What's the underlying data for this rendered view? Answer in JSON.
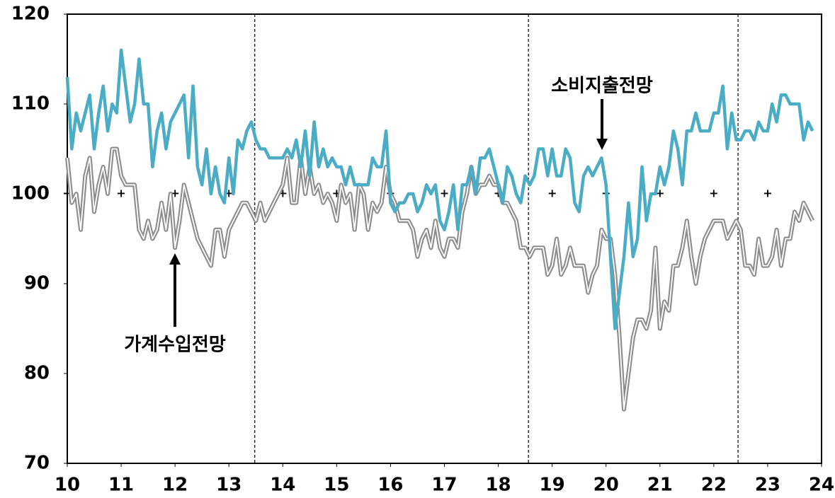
{
  "chart_data": {
    "type": "line",
    "xlim": [
      10,
      24
    ],
    "xticks": [
      10,
      11,
      12,
      13,
      14,
      15,
      16,
      17,
      18,
      19,
      20,
      21,
      22,
      23,
      24
    ],
    "ylim": [
      70,
      120
    ],
    "yticks": [
      70,
      80,
      90,
      100,
      110,
      120
    ],
    "vlines": [
      13.48,
      18.56,
      22.45
    ],
    "hline": 100,
    "x": [
      10,
      10.083,
      10.167,
      10.25,
      10.333,
      10.417,
      10.5,
      10.583,
      10.667,
      10.75,
      10.833,
      10.917,
      11,
      11.083,
      11.167,
      11.25,
      11.333,
      11.417,
      11.5,
      11.583,
      11.667,
      11.75,
      11.833,
      11.917,
      12,
      12.083,
      12.167,
      12.25,
      12.333,
      12.417,
      12.5,
      12.583,
      12.667,
      12.75,
      12.833,
      12.917,
      13,
      13.083,
      13.167,
      13.25,
      13.333,
      13.417,
      13.5,
      13.583,
      13.667,
      13.75,
      13.833,
      13.917,
      14,
      14.083,
      14.167,
      14.25,
      14.333,
      14.417,
      14.5,
      14.583,
      14.667,
      14.75,
      14.833,
      14.917,
      15,
      15.083,
      15.167,
      15.25,
      15.333,
      15.417,
      15.5,
      15.583,
      15.667,
      15.75,
      15.833,
      15.917,
      16,
      16.083,
      16.167,
      16.25,
      16.333,
      16.417,
      16.5,
      16.583,
      16.667,
      16.75,
      16.833,
      16.917,
      17,
      17.083,
      17.167,
      17.25,
      17.333,
      17.417,
      17.5,
      17.583,
      17.667,
      17.75,
      17.833,
      17.917,
      18,
      18.083,
      18.167,
      18.25,
      18.333,
      18.417,
      18.5,
      18.583,
      18.667,
      18.75,
      18.833,
      18.917,
      19,
      19.083,
      19.167,
      19.25,
      19.333,
      19.417,
      19.5,
      19.583,
      19.667,
      19.75,
      19.833,
      19.917,
      20,
      20.083,
      20.167,
      20.25,
      20.333,
      20.417,
      20.5,
      20.583,
      20.667,
      20.75,
      20.833,
      20.917,
      21,
      21.083,
      21.167,
      21.25,
      21.333,
      21.417,
      21.5,
      21.583,
      21.667,
      21.75,
      21.833,
      21.917,
      22,
      22.083,
      22.167,
      22.25,
      22.333,
      22.417,
      22.5,
      22.583,
      22.667,
      22.75,
      22.833,
      22.917,
      23,
      23.083,
      23.167,
      23.25,
      23.333,
      23.417,
      23.5,
      23.583,
      23.667,
      23.75,
      23.833
    ],
    "series": [
      {
        "name": "소비지출전망",
        "color": "#4bacc6",
        "values": [
          113,
          105,
          109,
          107,
          109,
          111,
          105,
          109,
          112,
          107,
          110,
          109,
          116,
          112,
          108,
          110,
          115,
          110,
          110,
          103,
          107,
          109,
          105,
          108,
          109,
          110,
          111,
          104,
          112,
          103,
          101,
          105,
          100,
          103,
          100,
          99,
          104,
          100,
          106,
          105,
          107,
          108,
          106,
          105,
          105,
          104,
          104,
          104,
          104,
          105,
          104,
          106,
          103,
          107,
          102,
          108,
          103,
          105,
          103,
          104,
          103,
          103,
          101,
          103,
          101,
          101,
          101,
          101,
          104,
          103,
          103,
          107,
          99,
          98,
          99,
          99,
          100,
          100,
          98,
          99,
          101,
          100,
          101,
          97,
          96,
          98,
          101,
          96,
          101,
          101,
          103,
          100,
          104,
          104,
          105,
          103,
          101,
          99,
          103,
          102,
          100,
          99,
          102,
          101,
          102,
          105,
          105,
          102,
          105,
          102,
          102,
          105,
          104,
          99,
          98,
          102,
          103,
          102,
          103,
          104,
          101,
          93,
          85,
          89,
          93,
          99,
          93,
          95,
          103,
          97,
          100,
          100,
          103,
          101,
          103,
          107,
          105,
          101,
          107,
          107,
          109,
          107,
          107,
          107,
          109,
          109,
          112,
          105,
          109,
          106,
          106,
          107,
          107,
          106,
          108,
          107,
          107,
          110,
          108,
          111,
          111,
          110,
          110,
          110,
          106,
          108,
          107
        ]
      },
      {
        "name": "가계수입전망",
        "color": "#8c8c8c",
        "values": [
          104,
          99,
          100,
          96,
          102,
          104,
          98,
          101,
          103,
          100,
          105,
          105,
          102,
          101,
          101,
          101,
          96,
          95,
          97,
          95,
          96,
          99,
          96,
          100,
          94,
          97,
          101,
          99,
          97,
          95,
          94,
          93,
          92,
          96,
          96,
          93,
          96,
          97,
          98,
          99,
          99,
          98,
          97,
          99,
          97,
          98,
          99,
          100,
          101,
          104,
          99,
          99,
          104,
          100,
          103,
          100,
          101,
          99,
          100,
          99,
          97,
          101,
          99,
          100,
          96,
          101,
          100,
          96,
          99,
          98,
          99,
          103,
          100,
          99,
          97,
          97,
          97,
          96,
          93,
          95,
          96,
          94,
          97,
          94,
          93,
          95,
          95,
          94,
          98,
          100,
          103,
          100,
          101,
          101,
          102,
          101,
          101,
          99,
          99,
          98,
          97,
          94,
          94,
          93,
          94,
          94,
          94,
          91,
          92,
          95,
          91,
          92,
          94,
          92,
          92,
          92,
          89,
          91,
          92,
          96,
          95,
          95,
          91,
          84,
          76,
          80,
          84,
          86,
          86,
          85,
          87,
          94,
          85,
          88,
          87,
          92,
          92,
          94,
          97,
          93,
          90,
          93,
          95,
          96,
          97,
          97,
          97,
          95,
          96,
          97,
          96,
          92,
          92,
          91,
          95,
          92,
          92,
          93,
          96,
          92,
          95,
          95,
          98,
          97,
          99,
          98,
          97
        ]
      }
    ]
  }
}
